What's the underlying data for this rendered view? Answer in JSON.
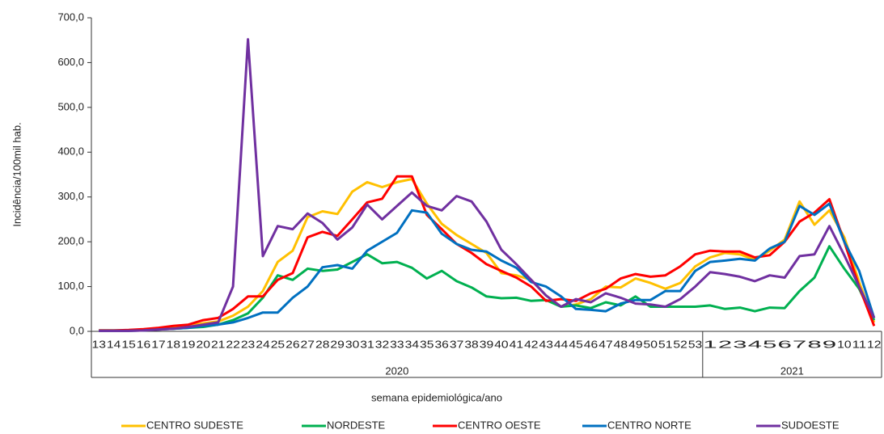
{
  "chart_data": {
    "type": "line",
    "y_label": "Incidência/100mil hab.",
    "x_label": "semana epidemiológica/ano",
    "categories": [
      "13",
      "14",
      "15",
      "16",
      "17",
      "18",
      "19",
      "20",
      "21",
      "22",
      "23",
      "24",
      "25",
      "26",
      "27",
      "28",
      "29",
      "30",
      "31",
      "32",
      "33",
      "34",
      "35",
      "36",
      "37",
      "38",
      "39",
      "40",
      "41",
      "42",
      "43",
      "44",
      "45",
      "46",
      "47",
      "48",
      "49",
      "50",
      "51",
      "52",
      "53",
      "1",
      "2",
      "3",
      "4",
      "5",
      "6",
      "7",
      "8",
      "9",
      "10",
      "11",
      "12"
    ],
    "x_groups": [
      {
        "label": "2020",
        "size": 41
      },
      {
        "label": "2021",
        "size": 12
      }
    ],
    "ylim": [
      0,
      700
    ],
    "yticks": [
      {
        "value": 0,
        "label": "0,0"
      },
      {
        "value": 100,
        "label": "100,0"
      },
      {
        "value": 200,
        "label": "200,0"
      },
      {
        "value": 300,
        "label": "300,0"
      },
      {
        "value": 400,
        "label": "400,0"
      },
      {
        "value": 500,
        "label": "500,0"
      },
      {
        "value": 600,
        "label": "600,0"
      },
      {
        "value": 700,
        "label": "700,0"
      }
    ],
    "series": [
      {
        "name": "CENTRO SUDESTE",
        "color": "#ffc000",
        "values": [
          2,
          2,
          2,
          3,
          5,
          8,
          12,
          18,
          22,
          35,
          55,
          90,
          155,
          180,
          255,
          268,
          262,
          312,
          333,
          322,
          333,
          340,
          285,
          240,
          215,
          195,
          175,
          130,
          125,
          115,
          80,
          55,
          60,
          72,
          100,
          98,
          118,
          108,
          95,
          108,
          145,
          165,
          175,
          172,
          160,
          180,
          205,
          290,
          238,
          270,
          210,
          110,
          20
        ]
      },
      {
        "name": "NORDESTE",
        "color": "#00b050",
        "values": [
          2,
          2,
          2,
          3,
          5,
          6,
          8,
          10,
          15,
          25,
          40,
          75,
          125,
          115,
          140,
          135,
          138,
          155,
          172,
          152,
          155,
          142,
          118,
          135,
          112,
          98,
          78,
          74,
          75,
          68,
          70,
          55,
          58,
          52,
          65,
          58,
          78,
          55,
          55,
          55,
          55,
          58,
          50,
          53,
          45,
          53,
          52,
          90,
          120,
          190,
          140,
          95,
          25
        ]
      },
      {
        "name": "CENTRO OESTE",
        "color": "#ff0000",
        "values": [
          2,
          2,
          3,
          5,
          8,
          12,
          15,
          25,
          30,
          50,
          78,
          78,
          115,
          130,
          210,
          222,
          213,
          250,
          288,
          296,
          346,
          346,
          260,
          228,
          195,
          175,
          150,
          135,
          120,
          100,
          68,
          72,
          68,
          85,
          95,
          118,
          128,
          122,
          125,
          145,
          172,
          180,
          178,
          178,
          165,
          170,
          200,
          245,
          265,
          295,
          200,
          100,
          12
        ]
      },
      {
        "name": "CENTRO NORTE",
        "color": "#0070c0",
        "values": [
          1,
          1,
          1,
          2,
          4,
          6,
          8,
          12,
          15,
          20,
          30,
          42,
          42,
          75,
          100,
          143,
          148,
          140,
          180,
          200,
          220,
          270,
          265,
          218,
          195,
          182,
          178,
          158,
          142,
          110,
          100,
          78,
          50,
          48,
          45,
          62,
          70,
          70,
          90,
          90,
          135,
          155,
          158,
          162,
          158,
          185,
          200,
          280,
          260,
          285,
          200,
          135,
          30
        ]
      },
      {
        "name": "SUDOESTE",
        "color": "#7030a0",
        "values": [
          1,
          1,
          1,
          2,
          4,
          6,
          10,
          15,
          20,
          100,
          652,
          168,
          235,
          228,
          263,
          242,
          205,
          232,
          283,
          250,
          280,
          310,
          280,
          270,
          302,
          290,
          245,
          182,
          150,
          115,
          80,
          55,
          72,
          65,
          85,
          75,
          62,
          60,
          55,
          72,
          100,
          132,
          128,
          122,
          112,
          125,
          120,
          168,
          172,
          235,
          170,
          100,
          30
        ]
      }
    ]
  }
}
